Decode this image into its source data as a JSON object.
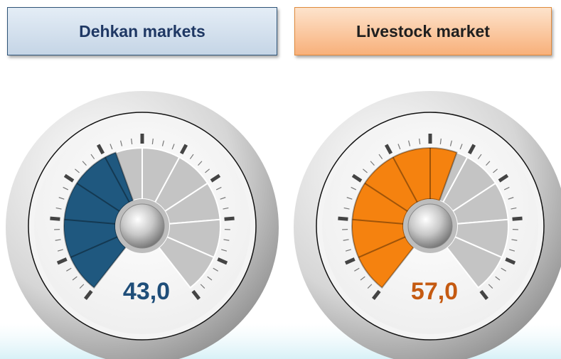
{
  "chart_data": [
    {
      "type": "gauge",
      "title": "Dehkan markets",
      "values": [
        43
      ],
      "value_labels": [
        "43,0"
      ],
      "ylim": [
        0,
        100
      ],
      "color": "#1f587f",
      "label_color": "#1f4e79"
    },
    {
      "type": "gauge",
      "title": "Livestock market",
      "values": [
        57
      ],
      "value_labels": [
        "57,0"
      ],
      "ylim": [
        0,
        100
      ],
      "color": "#f5820f",
      "label_color": "#c55a11"
    }
  ]
}
